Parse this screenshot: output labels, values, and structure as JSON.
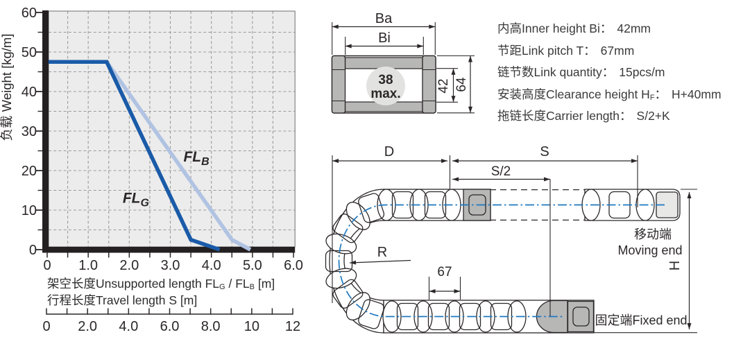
{
  "colors": {
    "ink": "#2b2728",
    "axis_bar": "#241f21",
    "plot_bg": "#ececec",
    "grid": "#9b9b9b",
    "flg_blue": "#1a5ba8",
    "flb_blue": "#b1c3e2",
    "gray_fill": "#b7b7b6",
    "light_gray_fill": "#e8e8e7",
    "circle_fill": "#e2e2e1",
    "centerline_blue": "#1e78c0"
  },
  "chart_data": {
    "type": "line",
    "title": "",
    "ylabel": "负载 Weight [kg/m]",
    "xlabel_line1": [
      {
        "t": "架空长度Unsupported length FL"
      },
      {
        "t": "G",
        "sub": true
      },
      {
        "t": " / FL"
      },
      {
        "t": "B",
        "sub": true
      },
      {
        "t": " [m]"
      }
    ],
    "xlabel_line2": [
      {
        "t": "行程长度Travel length S [m]"
      }
    ],
    "xlim": [
      0,
      6
    ],
    "ylim": [
      0,
      60
    ],
    "x_major_tick_labels": [
      "0",
      "1.0",
      "2.0",
      "3.0",
      "4.0",
      "5.0",
      "6.0"
    ],
    "x_minor_step": 0.5,
    "y_major_tick_labels": [
      "0",
      "10",
      "20",
      "30",
      "40",
      "50",
      "60"
    ],
    "y_minor_step": 5,
    "grid": "dashed",
    "legend_position": "on-line-labels",
    "series": [
      {
        "name": "FLB",
        "label_main": "FL",
        "label_sub": "B",
        "color": "#b1c3e2",
        "points": [
          [
            0,
            47.5
          ],
          [
            1.45,
            47.5
          ],
          [
            4.5,
            2.5
          ],
          [
            4.95,
            0
          ]
        ],
        "label_pos": [
          3.32,
          22.3
        ]
      },
      {
        "name": "FLG",
        "label_main": "FL",
        "label_sub": "G",
        "color": "#1a5ba8",
        "points": [
          [
            0,
            47.5
          ],
          [
            1.45,
            47.5
          ],
          [
            3.5,
            2.5
          ],
          [
            4.2,
            0
          ]
        ],
        "label_pos": [
          1.84,
          11.8
        ]
      }
    ],
    "secondary_axis": {
      "range": [
        0,
        12
      ],
      "minor_step": 1,
      "label_values": [
        0,
        2,
        4,
        6,
        8,
        10,
        12
      ],
      "label_ticks": [
        "0",
        "2.0",
        "4.0",
        "6.0",
        "8.0",
        "10",
        "12"
      ]
    }
  },
  "cross_section": {
    "dim_outer_width": "Ba",
    "dim_inner_width": "Bi",
    "inner_note_line1": "38",
    "inner_note_line2": "max.",
    "dim_inner_height": "42",
    "dim_outer_height": "64"
  },
  "specs": {
    "rows": [
      {
        "label": "内高Inner height Bi",
        "sub": "",
        "colon": "：",
        "value": "42mm"
      },
      {
        "label": "节距Link pitch T",
        "sub": "",
        "colon": "：",
        "value": "67mm"
      },
      {
        "label": "链节数Link quantity",
        "sub": "",
        "colon": "：",
        "value": "15pcs/m"
      },
      {
        "label": "安装高度Clearance height H",
        "sub": "F",
        "colon": "：",
        "value": "H+40mm"
      },
      {
        "label": "拖链长度Carrier length",
        "sub": "",
        "colon": "：",
        "value": "S/2+K"
      }
    ]
  },
  "diagram": {
    "dim_d": "D",
    "dim_s": "S",
    "dim_s_half": "S/2",
    "dim_radius": "R",
    "dim_pitch": "67",
    "dim_height": "H",
    "moving_end_cn": "移动端",
    "moving_end_en": "Moving end",
    "fixed_end": "固定端Fixed end"
  }
}
